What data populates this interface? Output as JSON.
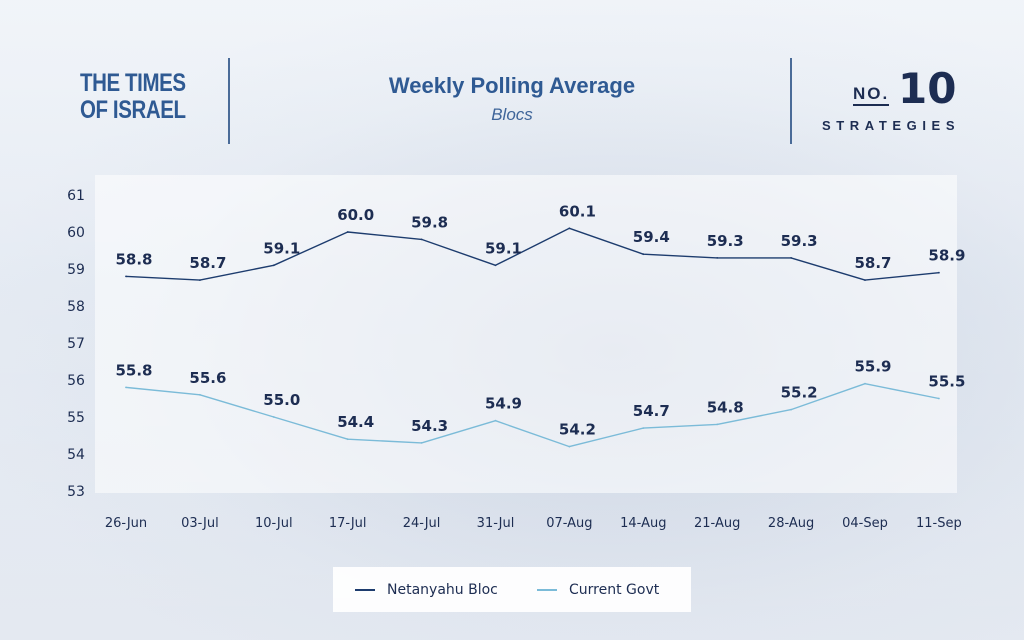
{
  "header": {
    "logo_line1": "THE TIMES",
    "logo_line2": "OF ISRAEL",
    "brand_prefix": "NO.",
    "brand_number": "10",
    "brand_word": "STRATEGIES"
  },
  "chart_data": {
    "type": "line",
    "title": "Weekly Polling Average",
    "subtitle": "Blocs",
    "xlabel": "",
    "ylabel": "",
    "categories": [
      "26-Jun",
      "03-Jul",
      "10-Jul",
      "17-Jul",
      "24-Jul",
      "31-Jul",
      "07-Aug",
      "14-Aug",
      "21-Aug",
      "28-Aug",
      "04-Sep",
      "11-Sep"
    ],
    "y_ticks": [
      53,
      54,
      55,
      56,
      57,
      58,
      59,
      60,
      61
    ],
    "ylim": [
      53,
      61
    ],
    "grid": false,
    "legend_position": "bottom-center",
    "series": [
      {
        "name": "Netanyahu Bloc",
        "color": "#1d3c6e",
        "values": [
          58.8,
          58.7,
          59.1,
          60.0,
          59.8,
          59.1,
          60.1,
          59.4,
          59.3,
          59.3,
          58.7,
          58.9
        ],
        "labels": [
          "58.8",
          "58.7",
          "59.1",
          "60.0",
          "59.8",
          "59.1",
          "60.1",
          "59.4",
          "59.3",
          "59.3",
          "58.7",
          "58.9"
        ]
      },
      {
        "name": "Current Govt",
        "color": "#7bbbd8",
        "values": [
          55.8,
          55.6,
          55.0,
          54.4,
          54.3,
          54.9,
          54.2,
          54.7,
          54.8,
          55.2,
          55.9,
          55.5
        ],
        "labels": [
          "55.8",
          "55.6",
          "55.0",
          "54.4",
          "54.3",
          "54.9",
          "54.2",
          "54.7",
          "54.8",
          "55.2",
          "55.9",
          "55.5"
        ]
      }
    ]
  }
}
